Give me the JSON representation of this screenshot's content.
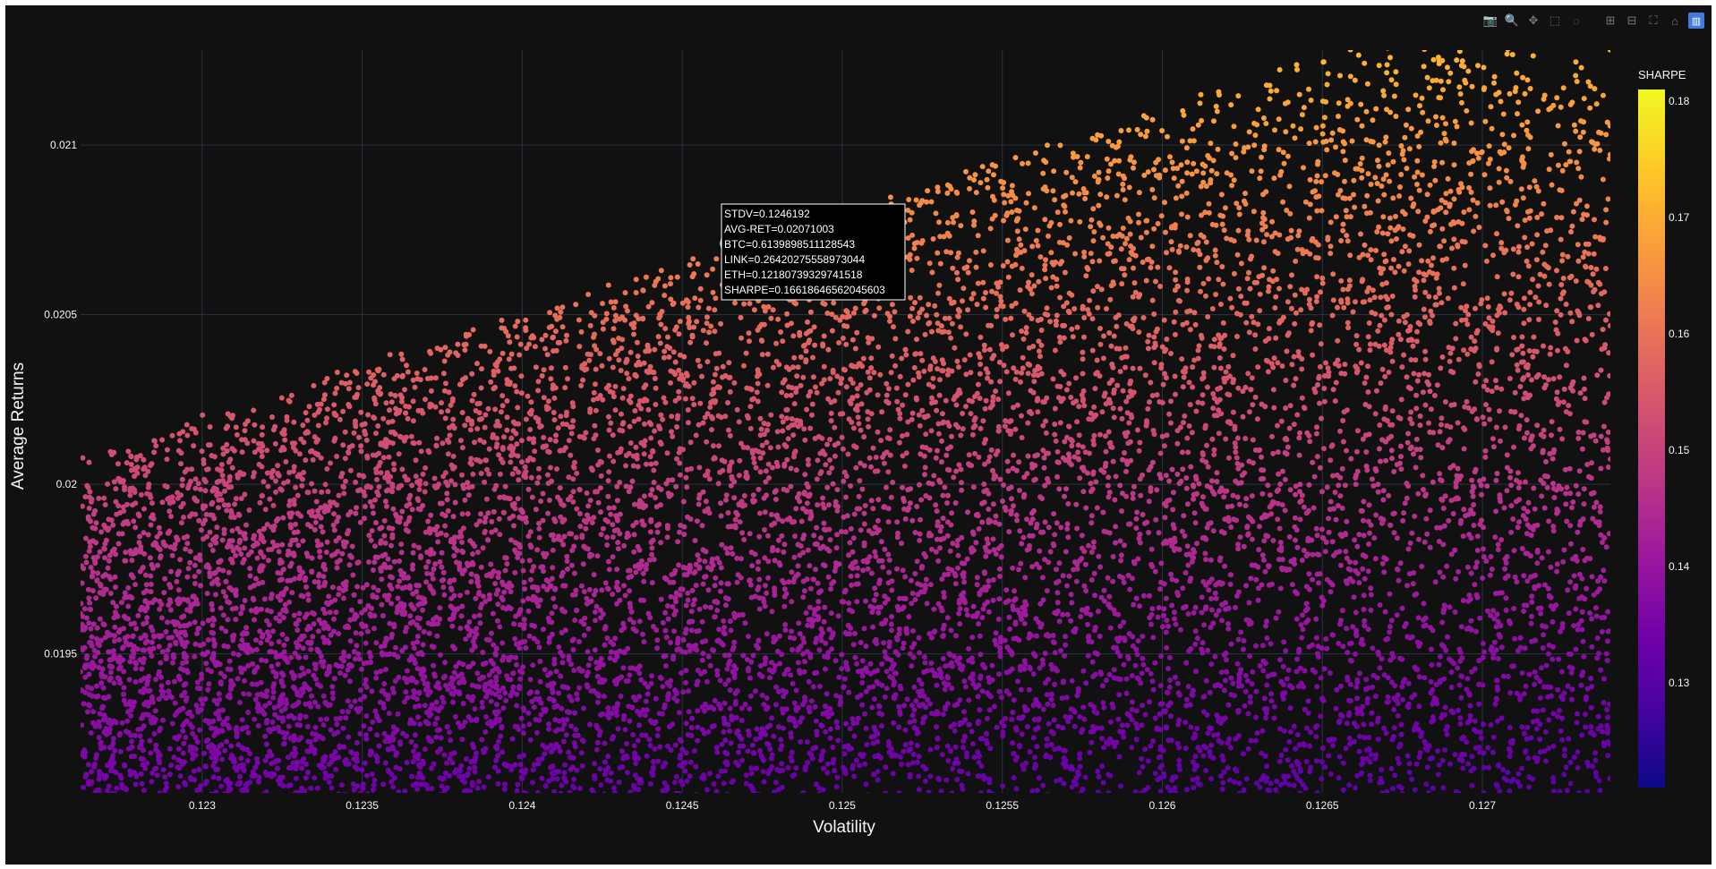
{
  "modebar": {
    "buttons": [
      {
        "name": "camera-icon",
        "glyph": "📷"
      },
      {
        "name": "zoom-icon",
        "glyph": "🔍"
      },
      {
        "name": "pan-icon",
        "glyph": "✥"
      },
      {
        "name": "box-select-icon",
        "glyph": "⬚"
      },
      {
        "name": "lasso-select-icon",
        "glyph": "◌"
      },
      {
        "name": "zoom-in-icon",
        "glyph": "⊞"
      },
      {
        "name": "zoom-out-icon",
        "glyph": "⊟"
      },
      {
        "name": "autoscale-icon",
        "glyph": "⛶"
      },
      {
        "name": "reset-axes-icon",
        "glyph": "⌂"
      },
      {
        "name": "plotly-logo-icon",
        "glyph": "▥"
      }
    ]
  },
  "chart_data": {
    "type": "scatter",
    "title": "",
    "xlabel": "Volatility",
    "ylabel": "Average Returns",
    "xlim": [
      0.12262,
      0.1274
    ],
    "ylim": [
      0.01909,
      0.02128
    ],
    "x_ticks": [
      "0.123",
      "0.1235",
      "0.124",
      "0.1245",
      "0.125",
      "0.1255",
      "0.126",
      "0.1265",
      "0.127"
    ],
    "x_tick_values": [
      0.123,
      0.1235,
      0.124,
      0.1245,
      0.125,
      0.1255,
      0.126,
      0.1265,
      0.127
    ],
    "y_ticks": [
      "0.0195",
      "0.02",
      "0.0205",
      "0.021"
    ],
    "y_tick_values": [
      0.0195,
      0.02,
      0.0205,
      0.021
    ],
    "grid": true,
    "frontier": {
      "x_start": 0.12262,
      "y_start": 0.02009,
      "x_end": 0.12655,
      "y_end": 0.02128
    },
    "points_note": "",
    "colorbar": {
      "title": "SHARPE",
      "range": [
        0.121,
        0.181
      ],
      "ticks": [
        "0.13",
        "0.14",
        "0.15",
        "0.16",
        "0.17",
        "0.18"
      ],
      "tick_values": [
        0.13,
        0.14,
        0.15,
        0.16,
        0.17,
        0.18
      ],
      "colorscale": [
        "#0d0887",
        "#46039f",
        "#7201a8",
        "#9c179e",
        "#bd3786",
        "#d8576b",
        "#ed7953",
        "#fb9f3a",
        "#fdca26",
        "#f0f921"
      ]
    },
    "hover": {
      "x": 0.1246192,
      "y": 0.02071003,
      "lines": [
        "STDV=0.1246192",
        "AVG-RET=0.02071003",
        "BTC=0.6139898511128543",
        "LINK=0.26420275558973044",
        "ETH=0.12180739329741518",
        "SHARPE=0.16618646562045603"
      ]
    }
  },
  "colors": {
    "background": "#111111",
    "grid": "#283442",
    "text": "#f2f5fa"
  }
}
